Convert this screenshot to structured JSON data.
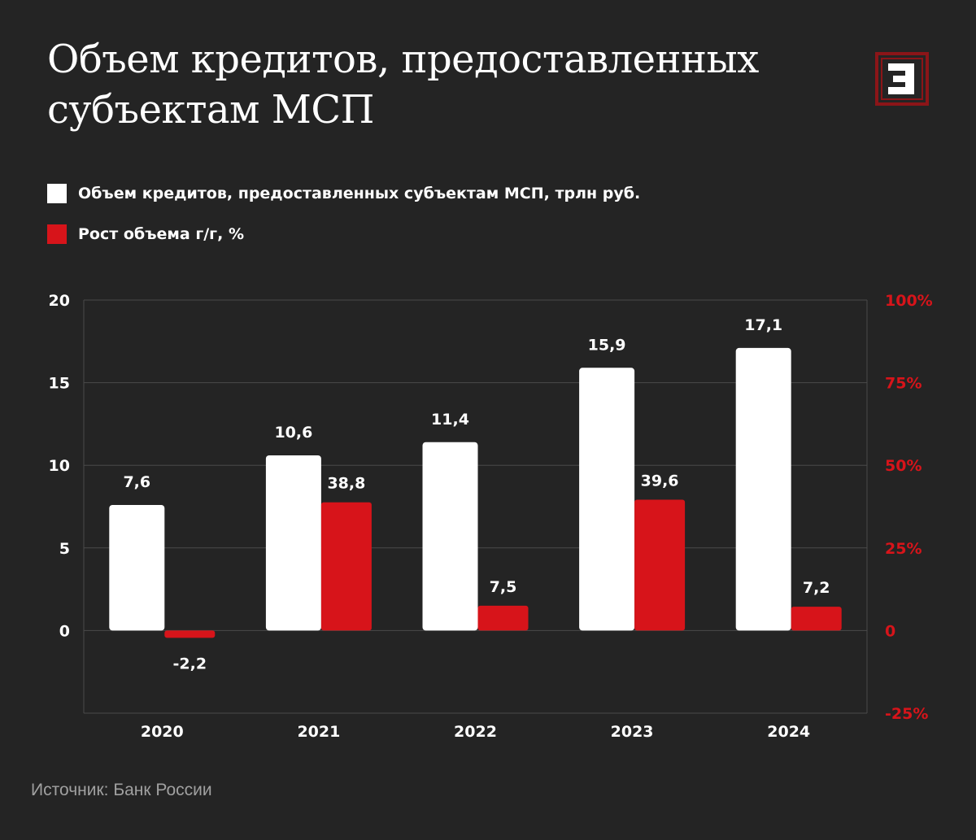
{
  "title": "Объем кредитов, предоставленных субъектам МСП",
  "logo": {
    "icon": "e-logo-icon"
  },
  "legend": [
    {
      "label": "Объем кредитов, предоставленных субъектам МСП, трлн руб.",
      "color": "#ffffff"
    },
    {
      "label": "Рост объема г/г, %",
      "color": "#d7141a"
    }
  ],
  "colors": {
    "background": "#242424",
    "volume": "#ffffff",
    "growth": "#d7141a",
    "grid": "#4a4a4a",
    "right_axis": "#d7141a"
  },
  "chart_data": {
    "type": "bar",
    "title": "Объем кредитов, предоставленных субъектам МСП",
    "categories": [
      "2020",
      "2021",
      "2022",
      "2023",
      "2024"
    ],
    "series": [
      {
        "name": "Объем кредитов, предоставленных субъектам МСП, трлн руб.",
        "axis": "left",
        "values": [
          7.6,
          10.6,
          11.4,
          15.9,
          17.1
        ],
        "labels": [
          "7,6",
          "10,6",
          "11,4",
          "15,9",
          "17,1"
        ]
      },
      {
        "name": "Рост объема г/г, %",
        "axis": "right",
        "values": [
          -2.2,
          38.8,
          7.5,
          39.6,
          7.2
        ],
        "labels": [
          "-2,2",
          "38,8",
          "7,5",
          "39,6",
          "7,2"
        ]
      }
    ],
    "left_axis": {
      "ylim": [
        -5,
        20
      ],
      "ticks": [
        0,
        5,
        10,
        15,
        20
      ],
      "tick_labels": [
        "0",
        "5",
        "10",
        "15",
        "20"
      ]
    },
    "right_axis": {
      "ylim": [
        -25,
        100
      ],
      "ticks": [
        -25,
        0,
        25,
        50,
        75,
        100
      ],
      "tick_labels": [
        "-25%",
        "0",
        "25%",
        "50%",
        "75%",
        "100%"
      ]
    },
    "grid": true,
    "legend_position": "top-left"
  },
  "source": "Источник: Банк России"
}
